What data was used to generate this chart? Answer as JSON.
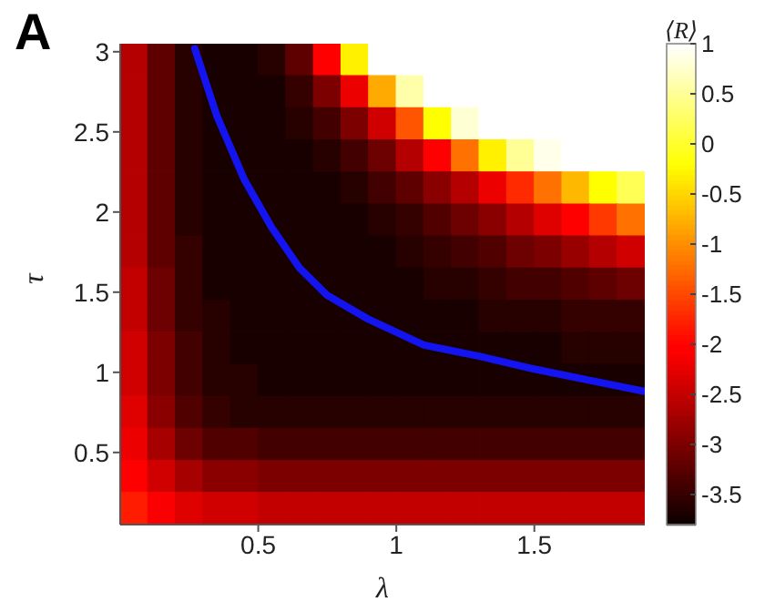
{
  "chart_data": {
    "type": "heatmap",
    "xlabel": "λ",
    "ylabel": "τ",
    "clabel": "⟨R⟩",
    "annotations": [
      "A"
    ],
    "xlim": [
      0,
      1.9
    ],
    "xticks": [
      0.5,
      1,
      1.5
    ],
    "ylim": [
      0.05,
      3.05
    ],
    "yticks": [
      0.5,
      1,
      1.5,
      2,
      2.5,
      3
    ],
    "clim": [
      -3.8,
      1
    ],
    "cticks": [
      1,
      0.5,
      0,
      -0.5,
      -1,
      -1.5,
      -2,
      -2.5,
      -3,
      -3.5
    ],
    "cells": [
      [
        -2.6,
        -3.2,
        -3.6,
        -3.7,
        -3.7,
        -3.6,
        -3.2,
        -2.0,
        -0.3,
        1,
        1,
        1,
        1,
        1,
        1,
        1,
        1,
        1,
        1
      ],
      [
        -2.6,
        -3.2,
        -3.6,
        -3.7,
        -3.7,
        -3.7,
        -3.5,
        -3.0,
        -2.2,
        -0.8,
        0.6,
        1,
        1,
        1,
        1,
        1,
        1,
        1,
        1
      ],
      [
        -2.6,
        -3.2,
        -3.6,
        -3.7,
        -3.7,
        -3.7,
        -3.6,
        -3.4,
        -3.0,
        -2.4,
        -1.4,
        -0.2,
        0.8,
        1,
        1,
        1,
        1,
        1,
        1
      ],
      [
        -2.6,
        -3.2,
        -3.6,
        -3.7,
        -3.7,
        -3.7,
        -3.7,
        -3.6,
        -3.4,
        -3.1,
        -2.6,
        -2.0,
        -1.2,
        -0.3,
        0.5,
        0.9,
        1,
        1,
        1
      ],
      [
        -2.6,
        -3.2,
        -3.6,
        -3.7,
        -3.7,
        -3.7,
        -3.7,
        -3.7,
        -3.6,
        -3.4,
        -3.2,
        -2.9,
        -2.6,
        -2.2,
        -1.7,
        -1.2,
        -0.7,
        -0.2,
        0.2
      ],
      [
        -2.6,
        -3.2,
        -3.6,
        -3.7,
        -3.7,
        -3.7,
        -3.7,
        -3.7,
        -3.7,
        -3.6,
        -3.5,
        -3.3,
        -3.1,
        -2.9,
        -2.6,
        -2.3,
        -2.0,
        -1.6,
        -1.2
      ],
      [
        -2.6,
        -3.2,
        -3.5,
        -3.7,
        -3.7,
        -3.7,
        -3.7,
        -3.7,
        -3.7,
        -3.7,
        -3.6,
        -3.5,
        -3.4,
        -3.3,
        -3.1,
        -3.0,
        -2.8,
        -2.6,
        -2.4
      ],
      [
        -2.5,
        -3.1,
        -3.5,
        -3.7,
        -3.7,
        -3.7,
        -3.7,
        -3.7,
        -3.7,
        -3.7,
        -3.7,
        -3.6,
        -3.6,
        -3.5,
        -3.4,
        -3.4,
        -3.3,
        -3.2,
        -3.1
      ],
      [
        -2.5,
        -3.1,
        -3.5,
        -3.6,
        -3.7,
        -3.7,
        -3.7,
        -3.7,
        -3.7,
        -3.7,
        -3.7,
        -3.7,
        -3.7,
        -3.6,
        -3.6,
        -3.6,
        -3.5,
        -3.5,
        -3.5
      ],
      [
        -2.4,
        -3.0,
        -3.4,
        -3.6,
        -3.7,
        -3.7,
        -3.7,
        -3.7,
        -3.7,
        -3.7,
        -3.7,
        -3.7,
        -3.7,
        -3.7,
        -3.7,
        -3.7,
        -3.6,
        -3.6,
        -3.6
      ],
      [
        -2.4,
        -3.0,
        -3.4,
        -3.6,
        -3.6,
        -3.7,
        -3.7,
        -3.7,
        -3.7,
        -3.7,
        -3.7,
        -3.7,
        -3.7,
        -3.7,
        -3.7,
        -3.7,
        -3.7,
        -3.7,
        -3.7
      ],
      [
        -2.3,
        -2.9,
        -3.3,
        -3.5,
        -3.6,
        -3.6,
        -3.6,
        -3.6,
        -3.6,
        -3.6,
        -3.6,
        -3.6,
        -3.6,
        -3.6,
        -3.6,
        -3.6,
        -3.6,
        -3.6,
        -3.6
      ],
      [
        -2.2,
        -2.7,
        -3.1,
        -3.3,
        -3.3,
        -3.4,
        -3.4,
        -3.4,
        -3.4,
        -3.4,
        -3.4,
        -3.4,
        -3.4,
        -3.4,
        -3.4,
        -3.4,
        -3.4,
        -3.4,
        -3.4
      ],
      [
        -2.0,
        -2.4,
        -2.7,
        -2.9,
        -2.9,
        -3.0,
        -3.0,
        -3.0,
        -3.0,
        -3.0,
        -3.0,
        -3.0,
        -3.0,
        -3.0,
        -3.0,
        -3.0,
        -3.0,
        -3.0,
        -3.0
      ],
      [
        -1.8,
        -2.1,
        -2.3,
        -2.4,
        -2.4,
        -2.5,
        -2.5,
        -2.5,
        -2.5,
        -2.5,
        -2.5,
        -2.5,
        -2.5,
        -2.5,
        -2.5,
        -2.5,
        -2.5,
        -2.5,
        -2.5
      ]
    ],
    "series": [
      {
        "type": "line",
        "color": "#1414f0",
        "x": [
          0.27,
          0.35,
          0.45,
          0.55,
          0.65,
          0.75,
          0.9,
          1.1,
          1.3,
          1.5,
          1.7,
          1.9
        ],
        "values": [
          3.02,
          2.6,
          2.2,
          1.9,
          1.65,
          1.48,
          1.33,
          1.17,
          1.1,
          1.02,
          0.95,
          0.88
        ]
      }
    ]
  }
}
